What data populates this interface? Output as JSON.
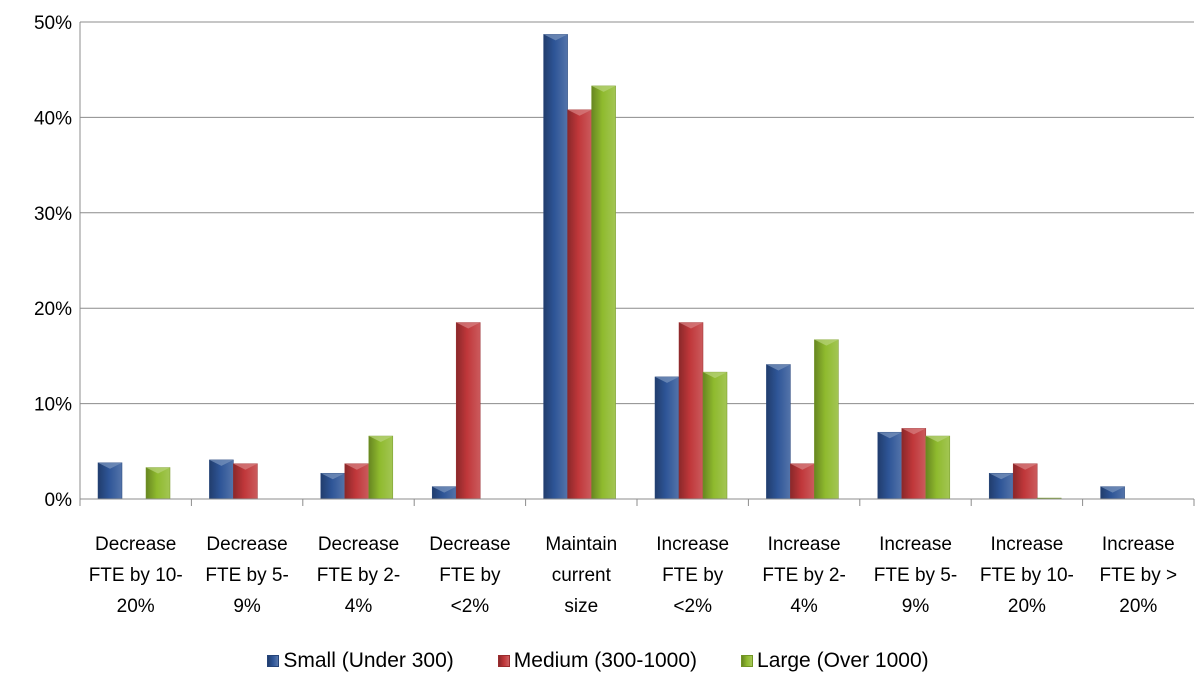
{
  "chart_data": {
    "type": "bar",
    "categories": [
      [
        "Decrease",
        "FTE by 10-",
        "20%"
      ],
      [
        "Decrease",
        "FTE by 5-",
        "9%"
      ],
      [
        "Decrease",
        "FTE by 2-",
        "4%"
      ],
      [
        "Decrease",
        "FTE by",
        "<2%"
      ],
      [
        "Maintain",
        "current",
        "size"
      ],
      [
        "Increase",
        "FTE by",
        "<2%"
      ],
      [
        "Increase",
        "FTE by 2-",
        "4%"
      ],
      [
        "Increase",
        "FTE by 5-",
        "9%"
      ],
      [
        "Increase",
        "FTE by 10-",
        "20%"
      ],
      [
        "Increase",
        "FTE by >",
        "20%"
      ]
    ],
    "series": [
      {
        "name": "Small (Under 300)",
        "color": "#2e5597",
        "values": [
          3.8,
          4.1,
          2.7,
          1.3,
          48.7,
          12.8,
          14.1,
          7.0,
          2.7,
          1.3
        ]
      },
      {
        "name": "Medium (300-1000)",
        "color": "#c0373a",
        "values": [
          0,
          3.7,
          3.7,
          18.5,
          40.8,
          18.5,
          3.7,
          7.4,
          3.7,
          0
        ]
      },
      {
        "name": "Large (Over 1000)",
        "color": "#8fba2e",
        "values": [
          3.3,
          0,
          6.6,
          0,
          43.3,
          13.3,
          16.7,
          6.6,
          0.1,
          0
        ]
      }
    ],
    "yticks": [
      "0%",
      "10%",
      "20%",
      "30%",
      "40%",
      "50%"
    ],
    "ylim": [
      0,
      50
    ],
    "grid": true,
    "legend": "bottom"
  }
}
